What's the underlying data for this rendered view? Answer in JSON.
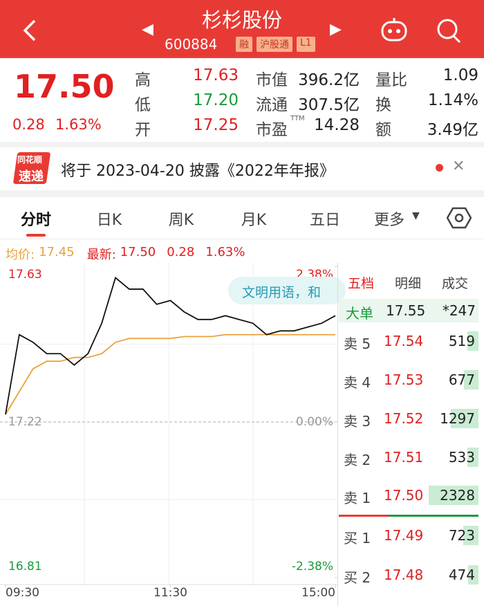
{
  "header": {
    "title": "杉杉股份",
    "code": "600884",
    "tags": [
      "融",
      "沪股通",
      "L1"
    ]
  },
  "quote": {
    "price": "17.50",
    "change": "0.28",
    "change_pct": "1.63%",
    "stats": [
      {
        "label": "高",
        "value": "17.63"
      },
      {
        "label": "市值",
        "value": "396.2亿"
      },
      {
        "label": "量比",
        "value": "1.09"
      },
      {
        "label": "低",
        "value": "17.20"
      },
      {
        "label": "流通",
        "value": "307.5亿"
      },
      {
        "label": "换",
        "value": "1.14%"
      },
      {
        "label": "开",
        "value": "17.25"
      },
      {
        "label": "市盈",
        "sup": "TTM",
        "value": "14.28"
      },
      {
        "label": "额",
        "value": "3.49亿"
      }
    ]
  },
  "news": {
    "logo_top": "同花顺",
    "logo_bottom": "速递",
    "text": "将于 2023-04-20 披露《2022年年报》"
  },
  "tabs": [
    "分时",
    "日K",
    "周K",
    "月K",
    "五日",
    "更多"
  ],
  "chart_info": {
    "avg_label": "均价:",
    "avg": "17.45",
    "last_label": "最新:",
    "last": "17.50",
    "change": "0.28",
    "change_pct": "1.63%"
  },
  "overlay": "文明用语，和",
  "chart_data": {
    "type": "line",
    "x": [
      0,
      10,
      20,
      30,
      40,
      50,
      60,
      70,
      80,
      90,
      100,
      110,
      120,
      130,
      140,
      150,
      160,
      170,
      180,
      190,
      200,
      210,
      220,
      230,
      240
    ],
    "xlim": [
      0,
      240
    ],
    "xticks": [
      {
        "value": 0,
        "label": "09:30"
      },
      {
        "value": 120,
        "label": "11:30"
      },
      {
        "value": 240,
        "label": "15:00"
      }
    ],
    "ylim": [
      16.81,
      17.63
    ],
    "yticks": [
      17.63,
      17.22,
      16.81
    ],
    "y2lim": [
      -2.38,
      2.38
    ],
    "y2ticks": [
      {
        "value": 2.38,
        "label": "2.38%"
      },
      {
        "value": 0,
        "label": "0.00%"
      },
      {
        "value": -2.38,
        "label": "-2.38%"
      }
    ],
    "series": [
      {
        "color": "#111111",
        "values": [
          17.24,
          17.45,
          17.43,
          17.4,
          17.4,
          17.37,
          17.4,
          17.48,
          17.6,
          17.57,
          17.57,
          17.53,
          17.54,
          17.51,
          17.49,
          17.49,
          17.5,
          17.49,
          17.48,
          17.45,
          17.46,
          17.46,
          17.47,
          17.48,
          17.5
        ]
      },
      {
        "color": "#e8a23a",
        "values": [
          17.24,
          17.3,
          17.36,
          17.38,
          17.38,
          17.39,
          17.39,
          17.4,
          17.43,
          17.44,
          17.44,
          17.44,
          17.44,
          17.445,
          17.445,
          17.445,
          17.45,
          17.45,
          17.45,
          17.45,
          17.45,
          17.45,
          17.45,
          17.45,
          17.45
        ]
      }
    ]
  },
  "order_book": {
    "tabs": [
      "五档",
      "明细",
      "成交"
    ],
    "big": {
      "label": "大单",
      "price": "17.55",
      "volume": "*247"
    },
    "rows": [
      {
        "label": "卖 5",
        "price": "17.54",
        "volume": 519
      },
      {
        "label": "卖 4",
        "price": "17.53",
        "volume": 677
      },
      {
        "label": "卖 3",
        "price": "17.52",
        "volume": 1297
      },
      {
        "label": "卖 2",
        "price": "17.51",
        "volume": 533
      },
      {
        "label": "卖 1",
        "price": "17.50",
        "volume": 2328
      },
      {
        "label": "买 1",
        "price": "17.49",
        "volume": 723
      },
      {
        "label": "买 2",
        "price": "17.48",
        "volume": 474
      }
    ]
  }
}
